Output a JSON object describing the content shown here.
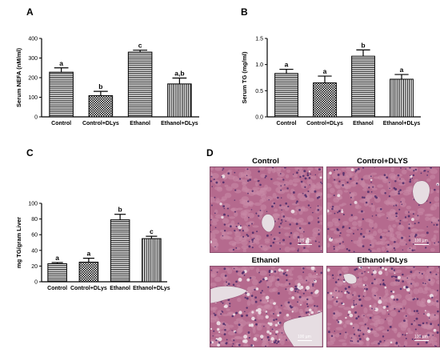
{
  "panels": {
    "A": "A",
    "B": "B",
    "C": "C",
    "D": "D"
  },
  "chart_data": [
    {
      "panel": "A",
      "type": "bar",
      "categories": [
        "Control",
        "Control+DLys",
        "Ethanol",
        "Ethanol+DLys"
      ],
      "values": [
        228,
        108,
        330,
        168
      ],
      "errors": [
        22,
        22,
        10,
        30
      ],
      "sig_letters": [
        "a",
        "b",
        "c",
        "a,b"
      ],
      "ylabel": "Serum NEFA (nM/ml)",
      "xlabel": "",
      "ylim": [
        0,
        400
      ],
      "yticks": [
        "0",
        "100",
        "200",
        "300",
        "400"
      ],
      "patterns": [
        "hstripes",
        "checker",
        "hstripes",
        "vstripes"
      ],
      "grid": false
    },
    {
      "panel": "B",
      "type": "bar",
      "categories": [
        "Control",
        "Control+DLys",
        "Ethanol",
        "Ethanol+DLys"
      ],
      "values": [
        0.83,
        0.65,
        1.16,
        0.72
      ],
      "errors": [
        0.08,
        0.13,
        0.12,
        0.09
      ],
      "sig_letters": [
        "a",
        "a",
        "b",
        "a"
      ],
      "ylabel": "Serum TG (mg/ml)",
      "xlabel": "",
      "ylim": [
        0,
        1.5
      ],
      "yticks": [
        "0.0",
        "0.5",
        "1.0",
        "1.5"
      ],
      "patterns": [
        "hstripes",
        "checker",
        "hstripes",
        "vstripes"
      ],
      "grid": false
    },
    {
      "panel": "C",
      "type": "bar",
      "categories": [
        "Control",
        "Control+DLys",
        "Ethanol",
        "Ethanol+DLys"
      ],
      "values": [
        23,
        25,
        79,
        55
      ],
      "errors": [
        1.5,
        5,
        7,
        3
      ],
      "sig_letters": [
        "a",
        "a",
        "b",
        "c"
      ],
      "ylabel": "mg TG/gram Liver",
      "xlabel": "",
      "ylim": [
        0,
        100
      ],
      "yticks": [
        "0",
        "20",
        "40",
        "60",
        "80",
        "100"
      ],
      "patterns": [
        "hstripes",
        "checker",
        "hstripes",
        "vstripes"
      ],
      "grid": false
    }
  ],
  "micrographs": {
    "control": {
      "title": "Control",
      "scale_label": "100 µm"
    },
    "control_dlys": {
      "title": "Control+DLYS",
      "scale_label": "100 µm"
    },
    "ethanol": {
      "title": "Ethanol",
      "scale_label": "100 µm"
    },
    "ethanol_dlys": {
      "title": "Ethanol+DLys",
      "scale_label": "100 µm"
    }
  },
  "colors": {
    "tissue": "#b56a8e",
    "nuclei": "#4a2a6a",
    "lumen": "#e6dde2"
  }
}
